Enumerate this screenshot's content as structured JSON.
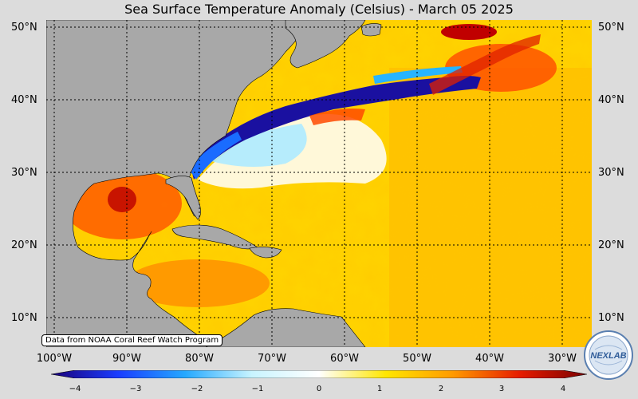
{
  "title": "Sea Surface Temperature Anomaly (Celsius) - March 05 2025",
  "credit": "Data from NOAA Coral Reef Watch Program",
  "lat_labels": [
    "50°N",
    "40°N",
    "30°N",
    "20°N",
    "10°N"
  ],
  "lon_labels": [
    "100°W",
    "90°W",
    "80°W",
    "70°W",
    "60°W",
    "50°W",
    "40°W",
    "30°W"
  ],
  "colorbar": {
    "ticks": [
      "−4",
      "−3",
      "−2",
      "−1",
      "0",
      "1",
      "2",
      "3",
      "4"
    ],
    "colors": [
      "#1a0078",
      "#1a3cff",
      "#24a8ff",
      "#c8f4ff",
      "#ffffff",
      "#ffe600",
      "#ff9a00",
      "#e61c00",
      "#7a0000"
    ]
  },
  "colors": {
    "land": "#a8a8a8",
    "background": "#dcdcdc"
  },
  "logo_text": "NEXLAB"
}
